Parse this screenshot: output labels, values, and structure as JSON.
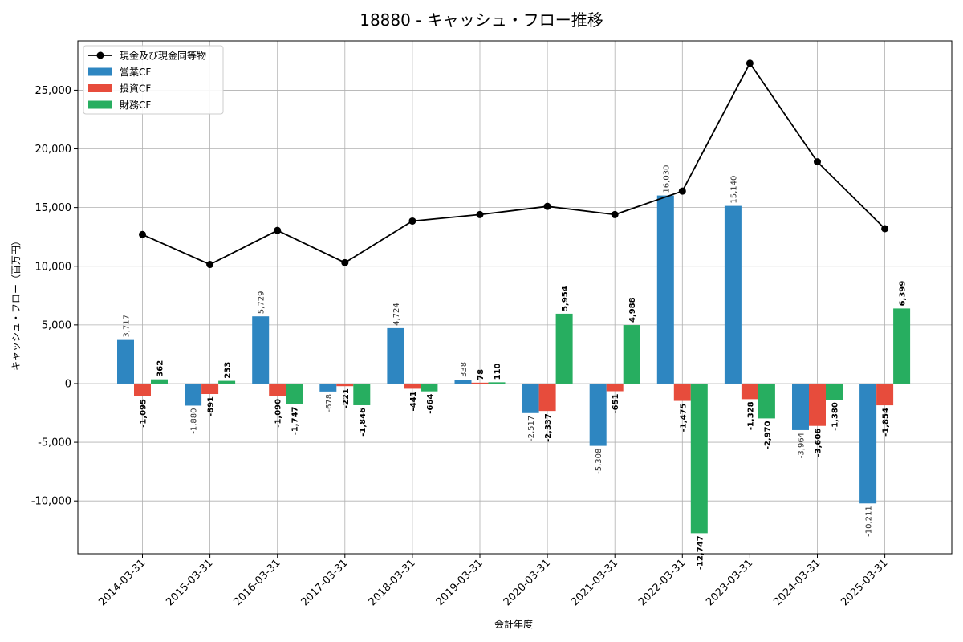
{
  "chart_data": {
    "type": "bar",
    "title": "18880 - キャッシュ・フロー推移",
    "xlabel": "会計年度",
    "ylabel": "キャッシュ・フロー（百万円）",
    "categories": [
      "2014-03-31",
      "2015-03-31",
      "2016-03-31",
      "2017-03-31",
      "2018-03-31",
      "2019-03-31",
      "2020-03-31",
      "2021-03-31",
      "2022-03-31",
      "2023-03-31",
      "2024-03-31",
      "2025-03-31"
    ],
    "ylim": [
      -14500,
      29200
    ],
    "yticks": [
      -10000,
      -5000,
      0,
      5000,
      10000,
      15000,
      20000,
      25000
    ],
    "ytick_labels": [
      "-10,000",
      "-5,000",
      "0",
      "5,000",
      "10,000",
      "15,000",
      "20,000",
      "25,000"
    ],
    "grid": true,
    "legend_position": "top-left",
    "series": [
      {
        "name": "営業CF",
        "kind": "bar",
        "color": "#2e86c1",
        "values": [
          3717,
          -1880,
          5729,
          -678,
          4724,
          338,
          -2517,
          -5308,
          16030,
          15140,
          -3964,
          -10211
        ],
        "labels": [
          "3,717",
          "-1,880",
          "5,729",
          "-678",
          "4,724",
          "338",
          "-2,517",
          "-5,308",
          "16,030",
          "15,140",
          "-3,964",
          "-10,211"
        ]
      },
      {
        "name": "投資CF",
        "kind": "bar",
        "color": "#e74c3c",
        "values": [
          -1095,
          -891,
          -1090,
          -221,
          -441,
          78,
          -2337,
          -651,
          -1475,
          -1328,
          -3606,
          -1854
        ],
        "labels": [
          "-1,095",
          "-891",
          "-1,090",
          "-221",
          "-441",
          "78",
          "-2,337",
          "-651",
          "-1,475",
          "-1,328",
          "-3,606",
          "-1,854"
        ]
      },
      {
        "name": "財務CF",
        "kind": "bar",
        "color": "#27ae60",
        "values": [
          362,
          233,
          -1747,
          -1846,
          -664,
          110,
          5954,
          4988,
          -12747,
          -2970,
          -1380,
          6399
        ],
        "labels": [
          "362",
          "233",
          "-1,747",
          "-1,846",
          "-664",
          "110",
          "5,954",
          "4,988",
          "-12,747",
          "-2,970",
          "-1,380",
          "6,399"
        ]
      },
      {
        "name": "現金及び現金同等物",
        "kind": "line",
        "color": "#000000",
        "values": [
          12700,
          10150,
          13050,
          10300,
          13850,
          14400,
          15100,
          14400,
          16400,
          27300,
          18900,
          13200
        ]
      }
    ]
  }
}
